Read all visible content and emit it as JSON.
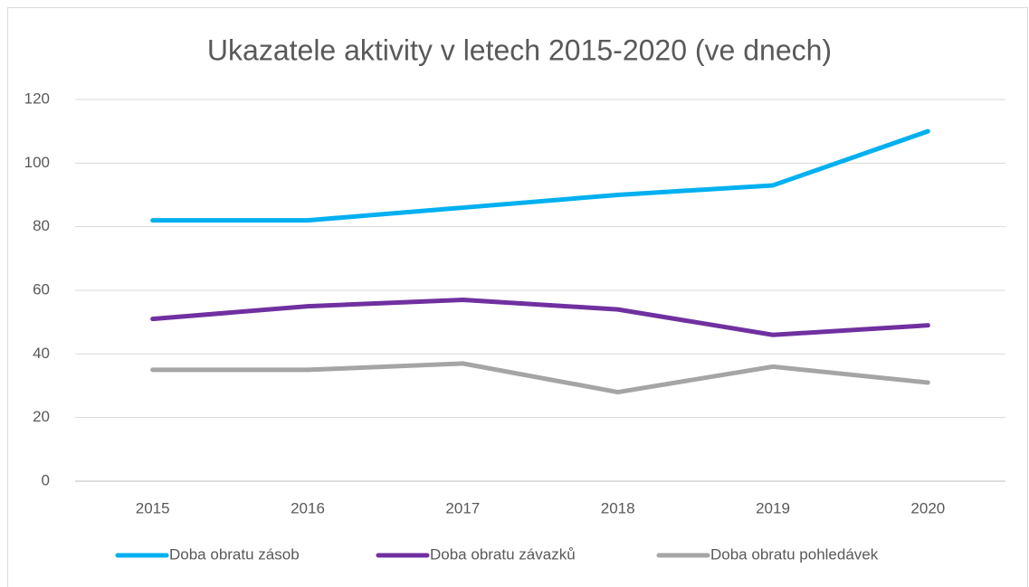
{
  "chart_data": {
    "type": "line",
    "title": "Ukazatele aktivity v letech 2015-2020 (ve dnech)",
    "categories": [
      "2015",
      "2016",
      "2017",
      "2018",
      "2019",
      "2020"
    ],
    "series": [
      {
        "name": "Doba obratu zásob",
        "color": "#00b0f0",
        "values": [
          82,
          82,
          86,
          90,
          93,
          110
        ]
      },
      {
        "name": "Doba obratu závazků",
        "color": "#7030a0",
        "values": [
          51,
          55,
          57,
          54,
          46,
          49
        ]
      },
      {
        "name": "Doba obratu pohledávek",
        "color": "#a5a5a5",
        "values": [
          35,
          35,
          37,
          28,
          36,
          31
        ]
      }
    ],
    "ylim": [
      0,
      120
    ],
    "yticks": [
      0,
      20,
      40,
      60,
      80,
      100,
      120
    ],
    "grid": true,
    "legend": "bottom"
  }
}
